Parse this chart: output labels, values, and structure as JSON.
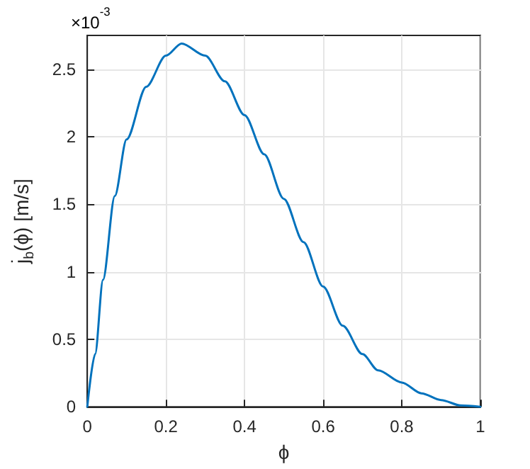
{
  "chart_data": {
    "type": "line",
    "xlabel": "ϕ",
    "ylabel": "ȷ̇$_{b}$(ϕ) [m/s]",
    "annotations": [
      "×10$^{-3}$"
    ],
    "x": [
      0,
      0.02,
      0.04,
      0.07,
      0.1,
      0.15,
      0.2,
      0.24,
      0.3,
      0.35,
      0.4,
      0.45,
      0.5,
      0.55,
      0.6,
      0.65,
      0.7,
      0.74,
      0.8,
      0.85,
      0.9,
      0.95,
      1
    ],
    "series": [
      {
        "color": "#0072bd",
        "values": [
          0,
          0.39,
          0.94,
          1.56,
          1.98,
          2.37,
          2.6,
          2.69,
          2.6,
          2.41,
          2.16,
          1.87,
          1.54,
          1.22,
          0.89,
          0.6,
          0.39,
          0.27,
          0.18,
          0.1,
          0.05,
          0.01,
          0
        ]
      }
    ],
    "xlim": [
      0,
      1
    ],
    "xticks": [
      0,
      0.2,
      0.4,
      0.6,
      0.8,
      1
    ],
    "ylim": [
      0,
      2.75
    ],
    "yticks": [
      0,
      0.5,
      1,
      1.5,
      2,
      2.5
    ],
    "grid": true,
    "marker": "none",
    "line_style": "solid"
  }
}
